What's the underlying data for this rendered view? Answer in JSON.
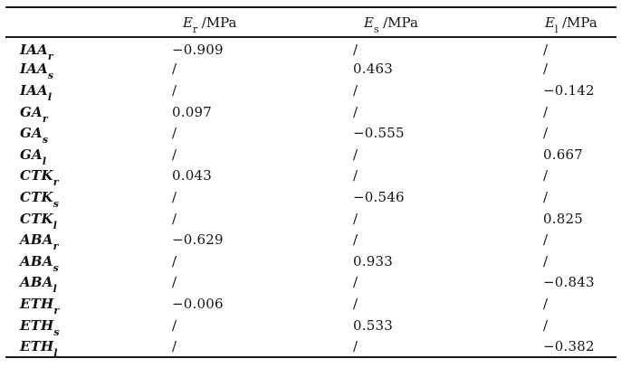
{
  "colors": {
    "background": "#ffffff",
    "text": "#121212",
    "rule": "#1a1a1a"
  },
  "table": {
    "headers": [
      {
        "symbol": "E",
        "subscript": "r",
        "unit": "/MPa"
      },
      {
        "symbol": "E",
        "subscript": "s",
        "unit": "/MPa"
      },
      {
        "symbol": "E",
        "subscript": "l",
        "unit": "/MPa"
      }
    ],
    "rows": [
      {
        "label": "IAA",
        "subscript": "r",
        "values": [
          "−0.909",
          "/",
          "/"
        ]
      },
      {
        "label": "IAA",
        "subscript": "s",
        "values": [
          "/",
          "0.463",
          "/"
        ]
      },
      {
        "label": "IAA",
        "subscript": "l",
        "values": [
          "/",
          "/",
          "−0.142"
        ]
      },
      {
        "label": "GA",
        "subscript": "r",
        "values": [
          "0.097",
          "/",
          "/"
        ]
      },
      {
        "label": "GA",
        "subscript": "s",
        "values": [
          "/",
          "−0.555",
          "/"
        ]
      },
      {
        "label": "GA",
        "subscript": "l",
        "values": [
          "/",
          "/",
          "0.667"
        ]
      },
      {
        "label": "CTK",
        "subscript": "r",
        "values": [
          "0.043",
          "/",
          "/"
        ]
      },
      {
        "label": "CTK",
        "subscript": "s",
        "values": [
          "/",
          "−0.546",
          "/"
        ]
      },
      {
        "label": "CTK",
        "subscript": "l",
        "values": [
          "/",
          "/",
          "0.825"
        ]
      },
      {
        "label": "ABA",
        "subscript": "r",
        "values": [
          "−0.629",
          "/",
          "/"
        ]
      },
      {
        "label": "ABA",
        "subscript": "s",
        "values": [
          "/",
          "0.933",
          "/"
        ]
      },
      {
        "label": "ABA",
        "subscript": "l",
        "values": [
          "/",
          "/",
          "−0.843"
        ]
      },
      {
        "label": "ETH",
        "subscript": "r",
        "values": [
          "−0.006",
          "/",
          "/"
        ]
      },
      {
        "label": "ETH",
        "subscript": "s",
        "values": [
          "/",
          "0.533",
          "/"
        ]
      },
      {
        "label": "ETH",
        "subscript": "l",
        "values": [
          "/",
          "/",
          "−0.382"
        ]
      }
    ]
  }
}
